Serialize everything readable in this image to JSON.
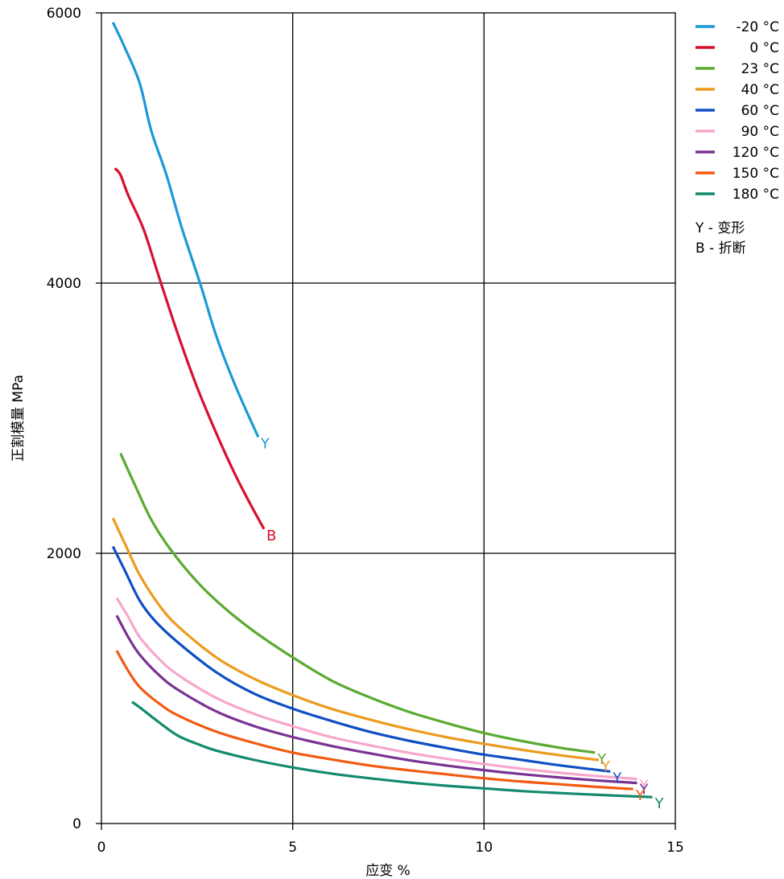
{
  "chart_data": {
    "type": "line",
    "xlabel": "应变 %",
    "ylabel": "正割模量 MPa",
    "xlim": [
      0,
      15
    ],
    "ylim": [
      0,
      6000
    ],
    "x_ticks": [
      "0",
      "5",
      "10",
      "15"
    ],
    "y_ticks": [
      "0",
      "2000",
      "4000",
      "6000"
    ],
    "grid": true,
    "legend_position": "top-right, outside plot",
    "legend_notes": [
      "Y - 变形",
      "B - 折断"
    ],
    "series": [
      {
        "name": "-20 °C",
        "color": "#1a9ad6",
        "end_marker": "Y",
        "points": [
          [
            0.3,
            5930
          ],
          [
            0.6,
            5750
          ],
          [
            1.0,
            5480
          ],
          [
            1.3,
            5130
          ],
          [
            1.7,
            4800
          ],
          [
            2.1,
            4410
          ],
          [
            2.6,
            3980
          ],
          [
            3.0,
            3610
          ],
          [
            3.5,
            3240
          ],
          [
            4.1,
            2860
          ]
        ]
      },
      {
        "name": "0 °C",
        "color": "#d8102e",
        "end_marker": "B",
        "points": [
          [
            0.35,
            4850
          ],
          [
            0.5,
            4800
          ],
          [
            0.7,
            4650
          ],
          [
            1.1,
            4400
          ],
          [
            1.5,
            4050
          ],
          [
            2.0,
            3620
          ],
          [
            2.5,
            3230
          ],
          [
            3.0,
            2890
          ],
          [
            3.5,
            2580
          ],
          [
            3.9,
            2360
          ],
          [
            4.25,
            2180
          ]
        ]
      },
      {
        "name": "23 °C",
        "color": "#5aaa32",
        "end_marker": "Y",
        "points": [
          [
            0.5,
            2740
          ],
          [
            0.9,
            2490
          ],
          [
            1.3,
            2250
          ],
          [
            1.8,
            2030
          ],
          [
            2.5,
            1790
          ],
          [
            3.2,
            1600
          ],
          [
            4.0,
            1420
          ],
          [
            5.0,
            1230
          ],
          [
            6.0,
            1060
          ],
          [
            7.0,
            935
          ],
          [
            8.0,
            830
          ],
          [
            9.0,
            745
          ],
          [
            10.0,
            670
          ],
          [
            11.0,
            610
          ],
          [
            12.0,
            560
          ],
          [
            12.9,
            525
          ]
        ]
      },
      {
        "name": "40 °C",
        "color": "#ec9b1e",
        "end_marker": "Y",
        "points": [
          [
            0.3,
            2260
          ],
          [
            0.6,
            2080
          ],
          [
            1.0,
            1840
          ],
          [
            1.5,
            1620
          ],
          [
            2.0,
            1460
          ],
          [
            3.0,
            1230
          ],
          [
            4.0,
            1070
          ],
          [
            5.0,
            950
          ],
          [
            6.0,
            850
          ],
          [
            7.0,
            770
          ],
          [
            8.0,
            700
          ],
          [
            9.0,
            640
          ],
          [
            10.0,
            590
          ],
          [
            11.0,
            545
          ],
          [
            12.0,
            505
          ],
          [
            13.0,
            470
          ]
        ]
      },
      {
        "name": "60 °C",
        "color": "#0f4fc4",
        "end_marker": "Y",
        "points": [
          [
            0.3,
            2050
          ],
          [
            0.6,
            1880
          ],
          [
            1.0,
            1650
          ],
          [
            1.4,
            1500
          ],
          [
            2.0,
            1340
          ],
          [
            3.0,
            1120
          ],
          [
            4.0,
            960
          ],
          [
            5.0,
            850
          ],
          [
            6.0,
            760
          ],
          [
            7.0,
            680
          ],
          [
            8.0,
            615
          ],
          [
            9.0,
            560
          ],
          [
            10.0,
            510
          ],
          [
            11.0,
            470
          ],
          [
            12.0,
            430
          ],
          [
            13.3,
            385
          ]
        ]
      },
      {
        "name": "90 °C",
        "color": "#f8a6cc",
        "end_marker": "Y",
        "points": [
          [
            0.4,
            1670
          ],
          [
            0.7,
            1530
          ],
          [
            1.0,
            1380
          ],
          [
            1.5,
            1220
          ],
          [
            2.0,
            1100
          ],
          [
            3.0,
            930
          ],
          [
            4.0,
            810
          ],
          [
            5.0,
            720
          ],
          [
            6.0,
            640
          ],
          [
            7.0,
            580
          ],
          [
            8.0,
            525
          ],
          [
            9.0,
            480
          ],
          [
            10.0,
            440
          ],
          [
            11.0,
            405
          ],
          [
            12.0,
            375
          ],
          [
            13.0,
            350
          ],
          [
            14.0,
            330
          ]
        ]
      },
      {
        "name": "120 °C",
        "color": "#7a3294",
        "end_marker": "Y",
        "points": [
          [
            0.4,
            1540
          ],
          [
            0.7,
            1380
          ],
          [
            1.0,
            1250
          ],
          [
            1.5,
            1100
          ],
          [
            2.0,
            990
          ],
          [
            3.0,
            830
          ],
          [
            4.0,
            720
          ],
          [
            5.0,
            640
          ],
          [
            6.0,
            575
          ],
          [
            7.0,
            520
          ],
          [
            8.0,
            470
          ],
          [
            9.0,
            430
          ],
          [
            10.0,
            395
          ],
          [
            11.0,
            365
          ],
          [
            12.0,
            340
          ],
          [
            13.0,
            318
          ],
          [
            14.0,
            300
          ]
        ]
      },
      {
        "name": "150 °C",
        "color": "#f25a10",
        "end_marker": "Y",
        "points": [
          [
            0.4,
            1280
          ],
          [
            0.7,
            1130
          ],
          [
            1.0,
            1010
          ],
          [
            1.5,
            890
          ],
          [
            2.0,
            800
          ],
          [
            3.0,
            680
          ],
          [
            4.0,
            595
          ],
          [
            5.0,
            525
          ],
          [
            6.0,
            475
          ],
          [
            7.0,
            430
          ],
          [
            8.0,
            395
          ],
          [
            9.0,
            365
          ],
          [
            10.0,
            335
          ],
          [
            11.0,
            310
          ],
          [
            12.0,
            290
          ],
          [
            13.0,
            270
          ],
          [
            13.9,
            255
          ]
        ]
      },
      {
        "name": "180 °C",
        "color": "#138a6e",
        "end_marker": "Y",
        "points": [
          [
            0.8,
            900
          ],
          [
            1.0,
            860
          ],
          [
            1.5,
            750
          ],
          [
            2.0,
            650
          ],
          [
            2.5,
            590
          ],
          [
            3.0,
            540
          ],
          [
            4.0,
            470
          ],
          [
            5.0,
            415
          ],
          [
            6.0,
            370
          ],
          [
            7.0,
            335
          ],
          [
            8.0,
            305
          ],
          [
            9.0,
            280
          ],
          [
            10.0,
            260
          ],
          [
            11.0,
            240
          ],
          [
            12.0,
            225
          ],
          [
            13.0,
            212
          ],
          [
            14.0,
            200
          ],
          [
            14.4,
            195
          ]
        ]
      }
    ]
  }
}
